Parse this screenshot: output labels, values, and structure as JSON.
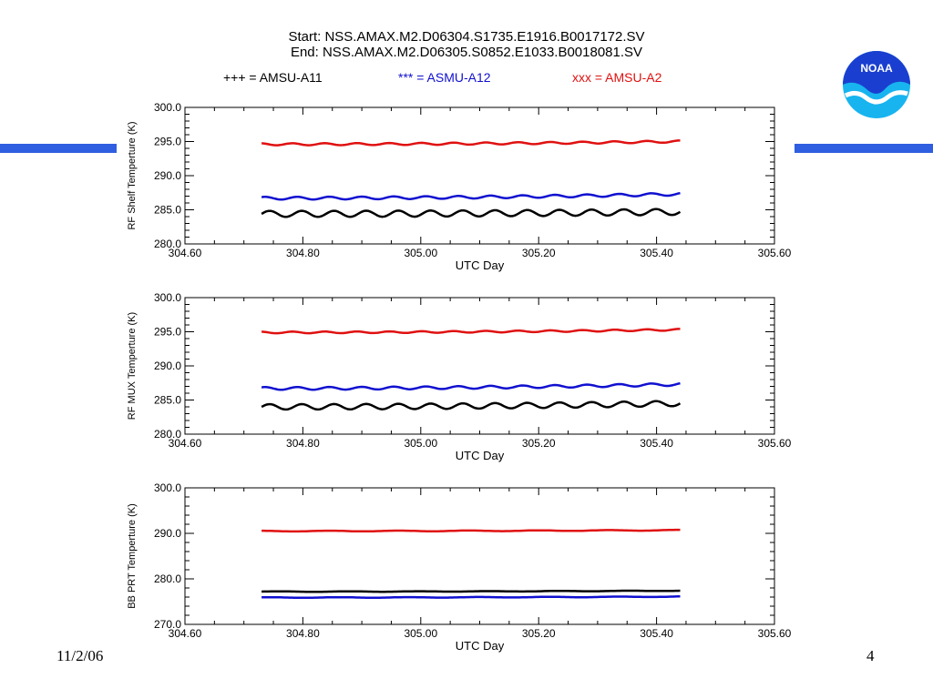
{
  "header": {
    "line1": "Start: NSS.AMAX.M2.D06304.S1735.E1916.B0017172.SV",
    "line2": "End: NSS.AMAX.M2.D06305.S0852.E1033.B0018081.SV"
  },
  "legend": {
    "a11": "+++ = AMSU-A11",
    "a12": "*** = ASMU-A12",
    "a2": "xxx = AMSU-A2"
  },
  "logo_text": "NOAA",
  "footer": {
    "date": "11/2/06",
    "page": "4"
  },
  "colors": {
    "a11": "#000000",
    "a12": "#1010d0",
    "a2": "#e01010",
    "banner": "#2f5fe0",
    "logo_top": "#1a3fd0",
    "logo_bottom": "#18b4ef"
  },
  "chart_data": [
    {
      "type": "line",
      "xlabel": "UTC Day",
      "ylabel": "RF Shelf Temperture (K)",
      "xlim": [
        304.6,
        305.6
      ],
      "ylim": [
        280.0,
        300.0
      ],
      "xticks": [
        "304.60",
        "304.80",
        "305.00",
        "305.20",
        "305.40",
        "305.60"
      ],
      "yticks": [
        "280.0",
        "285.0",
        "290.0",
        "295.0",
        "300.0"
      ],
      "x_range": [
        304.73,
        305.44
      ],
      "series": [
        {
          "name": "AMSU-A11",
          "color": "#000000",
          "base": 284.4,
          "trend": 0.3,
          "amp": 0.45,
          "periods": 13
        },
        {
          "name": "ASMU-A12",
          "color": "#1010d0",
          "base": 286.7,
          "trend": 0.6,
          "amp": 0.2,
          "periods": 13
        },
        {
          "name": "AMSU-A2",
          "color": "#e01010",
          "base": 294.6,
          "trend": 0.4,
          "amp": 0.15,
          "periods": 13
        }
      ]
    },
    {
      "type": "line",
      "xlabel": "UTC Day",
      "ylabel": "RF MUX Temperture (K)",
      "xlim": [
        304.6,
        305.6
      ],
      "ylim": [
        280.0,
        300.0
      ],
      "xticks": [
        "304.60",
        "304.80",
        "305.00",
        "305.20",
        "305.40",
        "305.60"
      ],
      "yticks": [
        "280.0",
        "285.0",
        "290.0",
        "295.0",
        "300.0"
      ],
      "x_range": [
        304.73,
        305.44
      ],
      "series": [
        {
          "name": "AMSU-A11",
          "color": "#000000",
          "base": 284.0,
          "trend": 0.5,
          "amp": 0.4,
          "periods": 13
        },
        {
          "name": "ASMU-A12",
          "color": "#1010d0",
          "base": 286.7,
          "trend": 0.6,
          "amp": 0.2,
          "periods": 13
        },
        {
          "name": "AMSU-A2",
          "color": "#e01010",
          "base": 294.9,
          "trend": 0.4,
          "amp": 0.12,
          "periods": 13
        }
      ]
    },
    {
      "type": "line",
      "xlabel": "UTC Day",
      "ylabel": "BB PRT Temperture (K)",
      "xlim": [
        304.6,
        305.6
      ],
      "ylim": [
        270.0,
        300.0
      ],
      "xticks": [
        "304.60",
        "304.80",
        "305.00",
        "305.20",
        "305.40",
        "305.60"
      ],
      "yticks": [
        "270.0",
        "280.0",
        "290.0",
        "300.0"
      ],
      "x_range": [
        304.73,
        305.44
      ],
      "series": [
        {
          "name": "AMSU-A11",
          "color": "#000000",
          "base": 277.2,
          "trend": 0.2,
          "amp": 0.05,
          "periods": 6
        },
        {
          "name": "ASMU-A12",
          "color": "#1010d0",
          "base": 275.9,
          "trend": 0.2,
          "amp": 0.06,
          "periods": 6
        },
        {
          "name": "AMSU-A2",
          "color": "#e01010",
          "base": 290.5,
          "trend": 0.2,
          "amp": 0.08,
          "periods": 6
        }
      ]
    }
  ]
}
